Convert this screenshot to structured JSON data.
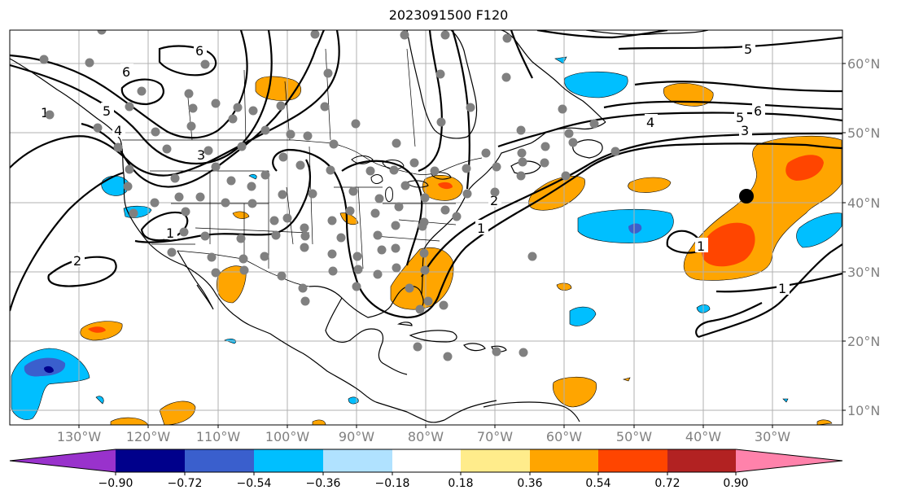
{
  "title": "2023091500 F120",
  "lon_labels": [
    "130°W",
    "120°W",
    "110°W",
    "100°W",
    "90°W",
    "80°W",
    "70°W",
    "60°W",
    "50°W",
    "40°W",
    "30°W"
  ],
  "lat_labels": [
    "60°N",
    "50°N",
    "40°N",
    "30°N",
    "20°N",
    "10°N"
  ],
  "contour_labels": [
    "6",
    "6",
    "5",
    "5",
    "6",
    "4",
    "3",
    "1",
    "1",
    "1",
    "2",
    "1",
    "2",
    "3",
    "4",
    "5",
    "1"
  ],
  "colorbar": {
    "ticks": [
      "−0.90",
      "−0.72",
      "−0.54",
      "−0.36",
      "−0.18",
      "0.18",
      "0.36",
      "0.54",
      "0.72",
      "0.90"
    ],
    "colors": [
      "#9932cc",
      "#00008b",
      "#3a5fcd",
      "#00bfff",
      "#b0e2ff",
      "#ffffff",
      "#ffec8b",
      "#ffa500",
      "#ff4500",
      "#b22222",
      "#ff82ab"
    ]
  },
  "map_colors": {
    "orange": "#ffa500",
    "red": "#ff4500",
    "light_blue": "#b0e2ff",
    "cyan": "#00bfff",
    "blue": "#3a5fcd",
    "navy": "#00008b",
    "station": "#808080",
    "marker": "#000000"
  }
}
